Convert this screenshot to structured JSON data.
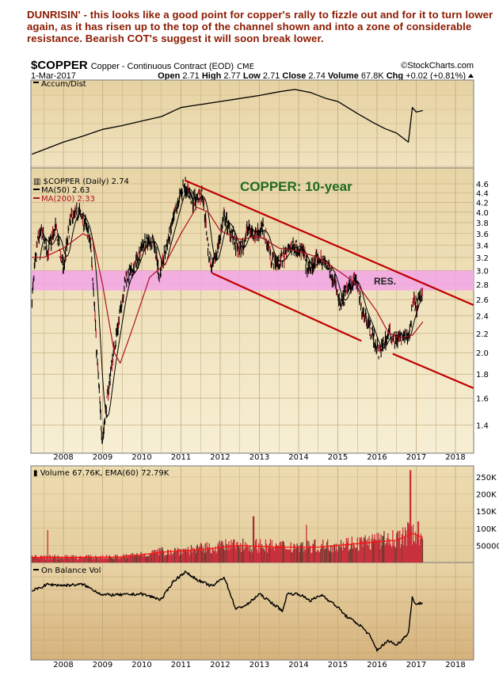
{
  "comment": "DUNRISIN' - this looks like a good point for copper's rally to fizzle out and for it to turn lower again, as it has risen up to the top of the channel shown and into a zone of considerable resistance. Bearish COT's suggest it will soon break lower.",
  "header": {
    "symbol": "$COPPER",
    "description": "Copper - Continuous Contract (EOD)",
    "exchange": "CME",
    "copyright": "©StockCharts.com",
    "date": "1-Mar-2017",
    "open_label": "Open",
    "open": "2.71",
    "high_label": "High",
    "high": "2.77",
    "low_label": "Low",
    "low": "2.71",
    "close_label": "Close",
    "close": "2.74",
    "volume_label": "Volume",
    "volume": "67.8K",
    "chg_label": "Chg",
    "chg": "+0.02 (+0.81%)",
    "chg_icon": "triangle-up-icon"
  },
  "colors": {
    "comment": "#8b1a00",
    "annotation_title": "#1f6b1f",
    "channel": "#c00000",
    "resistance_band": "#f2a6e6",
    "ma50": "#000000",
    "ma200": "#b01020",
    "volume": "#c8303c",
    "volume_ema": "#ff1010",
    "panel_bg": "#ecdcb2"
  },
  "chart_data": [
    {
      "type": "line",
      "panel": "Accum/Dist",
      "label": "Accum/Dist",
      "x": [
        2007.2,
        2007.6,
        2008.0,
        2008.5,
        2009.0,
        2009.5,
        2010.0,
        2010.5,
        2011.0,
        2011.5,
        2012.0,
        2012.5,
        2013.0,
        2013.5,
        2013.9,
        2014.3,
        2014.7,
        2015.0,
        2015.5,
        2015.9,
        2016.2,
        2016.5,
        2016.8,
        2016.9,
        2017.0,
        2017.17
      ],
      "values": [
        12,
        20,
        28,
        36,
        45,
        50,
        56,
        62,
        74,
        78,
        82,
        86,
        90,
        95,
        98,
        94,
        86,
        82,
        66,
        54,
        46,
        40,
        28,
        74,
        68,
        70
      ]
    },
    {
      "type": "line",
      "panel": "price",
      "title": "$COPPER (Daily) 2.74",
      "annotation": "COPPER: 10-year",
      "resistance_label": "RES.",
      "yscale": "log",
      "ylim": [
        1.25,
        4.75
      ],
      "yticks": [
        "4.6",
        "4.4",
        "4.2",
        "4.0",
        "3.8",
        "3.6",
        "3.4",
        "3.2",
        "3.0",
        "2.8",
        "2.6",
        "2.4",
        "2.2",
        "2.0",
        "1.8",
        "1.6",
        "1.4"
      ],
      "xticks": [
        "2008",
        "2009",
        "2010",
        "2011",
        "2012",
        "2013",
        "2014",
        "2015",
        "2016",
        "2017",
        "2018"
      ],
      "xlim": [
        2007.2,
        2018.5
      ],
      "grid": true,
      "x": [
        2007.2,
        2007.35,
        2007.45,
        2007.6,
        2007.8,
        2008.0,
        2008.2,
        2008.4,
        2008.55,
        2008.7,
        2008.85,
        2008.95,
        2009.0,
        2009.2,
        2009.4,
        2009.6,
        2009.8,
        2010.0,
        2010.3,
        2010.45,
        2010.6,
        2010.8,
        2011.0,
        2011.1,
        2011.3,
        2011.55,
        2011.7,
        2011.8,
        2011.95,
        2012.1,
        2012.3,
        2012.45,
        2012.6,
        2012.7,
        2012.9,
        2013.1,
        2013.3,
        2013.5,
        2013.7,
        2013.9,
        2014.1,
        2014.25,
        2014.5,
        2014.7,
        2014.9,
        2015.05,
        2015.3,
        2015.45,
        2015.6,
        2015.8,
        2015.95,
        2016.05,
        2016.3,
        2016.5,
        2016.7,
        2016.85,
        2016.9,
        2017.0,
        2017.17
      ],
      "close": [
        2.6,
        3.5,
        3.6,
        3.3,
        3.7,
        3.0,
        3.9,
        4.0,
        3.8,
        3.4,
        2.0,
        1.45,
        1.3,
        1.8,
        2.3,
        2.9,
        3.0,
        3.4,
        3.5,
        2.9,
        3.3,
        3.8,
        4.4,
        4.6,
        4.2,
        4.4,
        3.3,
        3.0,
        3.4,
        3.9,
        3.6,
        3.3,
        3.4,
        3.7,
        3.6,
        3.7,
        3.2,
        3.1,
        3.3,
        3.4,
        3.3,
        3.0,
        3.2,
        3.1,
        2.9,
        2.5,
        2.8,
        2.9,
        2.5,
        2.3,
        2.1,
        2.0,
        2.2,
        2.15,
        2.15,
        2.2,
        2.6,
        2.5,
        2.74
      ],
      "series": [
        {
          "name": "MA(50) 2.63",
          "value": "2.63"
        },
        {
          "name": "MA(200) 2.33",
          "value": "2.33",
          "x": [
            2007.2,
            2007.5,
            2008.0,
            2008.5,
            2008.75,
            2009.0,
            2009.3,
            2009.45,
            2009.8,
            2010.2,
            2010.6,
            2011.0,
            2011.4,
            2011.7,
            2012.0,
            2012.5,
            2013.0,
            2013.5,
            2014.0,
            2014.5,
            2015.0,
            2015.5,
            2016.0,
            2016.3,
            2016.6,
            2016.9,
            2017.17
          ],
          "values": [
            3.2,
            3.2,
            3.35,
            3.6,
            3.5,
            2.8,
            2.0,
            1.9,
            2.3,
            2.9,
            3.1,
            3.6,
            4.1,
            4.0,
            3.65,
            3.5,
            3.55,
            3.35,
            3.3,
            3.2,
            3.0,
            2.8,
            2.45,
            2.2,
            2.15,
            2.18,
            2.33
          ]
        }
      ],
      "resistance_zone": [
        2.72,
        3.0
      ],
      "channel_lines": [
        {
          "from": [
            2011.1,
            4.68
          ],
          "to": [
            2018.46,
            2.53
          ]
        },
        {
          "from": [
            2011.8,
            2.96
          ],
          "to": [
            2015.6,
            2.12
          ]
        },
        {
          "from": [
            2016.4,
            1.99
          ],
          "to": [
            2018.46,
            1.68
          ]
        }
      ]
    },
    {
      "type": "bar",
      "panel": "volume",
      "label": "Volume 67.76K, EMA(60) 72.79K",
      "yticks": [
        "250K",
        "200K",
        "150K",
        "100K",
        "50000"
      ],
      "ylim": [
        0,
        250000
      ],
      "ema_x": [
        2007.2,
        2008.5,
        2009.5,
        2010.5,
        2011.5,
        2012.5,
        2013.5,
        2014.5,
        2015.5,
        2016.5,
        2016.9,
        2017.17
      ],
      "ema_values": [
        15000,
        15000,
        16000,
        30000,
        38000,
        50000,
        45000,
        45000,
        55000,
        65000,
        85000,
        73000
      ],
      "spikes": [
        {
          "x": 2007.6,
          "value": 95000
        },
        {
          "x": 2012.85,
          "value": 135000
        },
        {
          "x": 2014.2,
          "value": 110000
        },
        {
          "x": 2016.85,
          "value": 270000
        },
        {
          "x": 2017.05,
          "value": 120000
        }
      ]
    },
    {
      "type": "line",
      "panel": "OBV",
      "label": "On Balance Vol",
      "xticks": [
        "2008",
        "2009",
        "2010",
        "2011",
        "2012",
        "2013",
        "2014",
        "2015",
        "2016",
        "2017",
        "2018"
      ],
      "x": [
        2007.2,
        2007.6,
        2008.0,
        2008.5,
        2009.0,
        2009.5,
        2010.0,
        2010.5,
        2010.8,
        2011.1,
        2011.5,
        2011.8,
        2012.1,
        2012.4,
        2012.7,
        2013.0,
        2013.3,
        2013.6,
        2013.7,
        2014.0,
        2014.3,
        2014.6,
        2015.0,
        2015.2,
        2015.6,
        2015.8,
        2016.0,
        2016.3,
        2016.5,
        2016.8,
        2016.9,
        2017.0,
        2017.17
      ],
      "values": [
        70,
        77,
        76,
        77,
        66,
        66,
        67,
        61,
        80,
        90,
        80,
        75,
        85,
        51,
        56,
        67,
        58,
        49,
        67,
        67,
        60,
        66,
        53,
        44,
        33,
        24,
        8,
        18,
        13,
        26,
        63,
        56,
        58
      ]
    }
  ]
}
